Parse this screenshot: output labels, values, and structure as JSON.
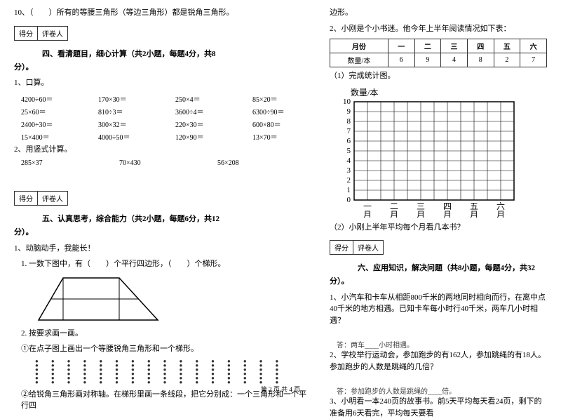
{
  "left": {
    "q10": "10、（　　）所有的等腰三角形（等边三角形）都是锐角三角形。",
    "scorebox": {
      "a": "得分",
      "b": "评卷人"
    },
    "sec4_title": "四、看清题目，细心计算（共2小题，每题4分，共8",
    "fen": "分）。",
    "k1": "1、口算。",
    "calc": [
      [
        "4200÷60＝",
        "170×30＝",
        "250×4＝",
        "85×20＝"
      ],
      [
        "25×60＝",
        "810÷3＝",
        "3600÷4＝",
        "6300÷90＝"
      ],
      [
        "2400÷30＝",
        "300×32＝",
        "220×30＝",
        "600×80＝"
      ],
      [
        "15×400＝",
        "4000÷50＝",
        "120×90＝",
        "13×70＝"
      ]
    ],
    "k2": "2、用竖式计算。",
    "calc2": [
      "285×37",
      "70×430",
      "56×208"
    ],
    "sec5_title": "五、认真思考，综合能力（共2小题，每题6分，共12",
    "t1": "1、动脑动手，我能长！",
    "t1a": "1. 一数下图中，有（　　）个平行四边形，（　　）个梯形。",
    "t2": "2. 按要求画一画。",
    "t2a": "①在点子图上画出一个等腰锐角三角形和一个梯形。",
    "t2b": "②给锐角三角形画对称轴。在梯形里画一条线段，把它分别成：一个三角形和一个平行四"
  },
  "right": {
    "bianxing": "边形。",
    "q2": "2、小刚是个小书迷。他今年上半年阅读情况如下表：",
    "table": {
      "head": [
        "月份",
        "一",
        "二",
        "三",
        "四",
        "五",
        "六"
      ],
      "row": [
        "数量/本",
        "6",
        "9",
        "4",
        "8",
        "2",
        "7"
      ]
    },
    "t_done": "（1）完成统计图。",
    "chart": {
      "ylabel": "数量/本",
      "yticks": [
        "10",
        "9",
        "8",
        "7",
        "6",
        "5",
        "4",
        "3",
        "2",
        "1",
        "0"
      ],
      "xlabels": [
        "一月",
        "二月",
        "三月",
        "四月",
        "五月",
        "六月"
      ],
      "grid_color": "#000",
      "bg": "#fff"
    },
    "t_q2": "（2）小刚上半年平均每个月看几本书？",
    "scorebox": {
      "a": "得分",
      "b": "评卷人"
    },
    "sec6_title": "六、应用知识，解决问题（共8小题，每题4分，共32",
    "fen": "分）。",
    "p1": "1、小汽车和卡车从相距800千米的两地同时相向而行，在离中点40千米的地方相遇。已知卡车每小时行40千米，两车几小时相遇？",
    "p1ans": "答：两车____小时相遇。",
    "p2": "2、学校举行运动会，参加跑步的有162人，参加跳绳的有18人。参加跑步的人数是跳绳的几倍？",
    "p2ans": "答：参加跑步的人数是跳绳的____倍。",
    "p3": "3、小明看一本240页的故事书。前5天平均每天看24页，剩下的准备用6天看完，平均每天要看"
  },
  "footer": "第 2 页 共 4 页"
}
